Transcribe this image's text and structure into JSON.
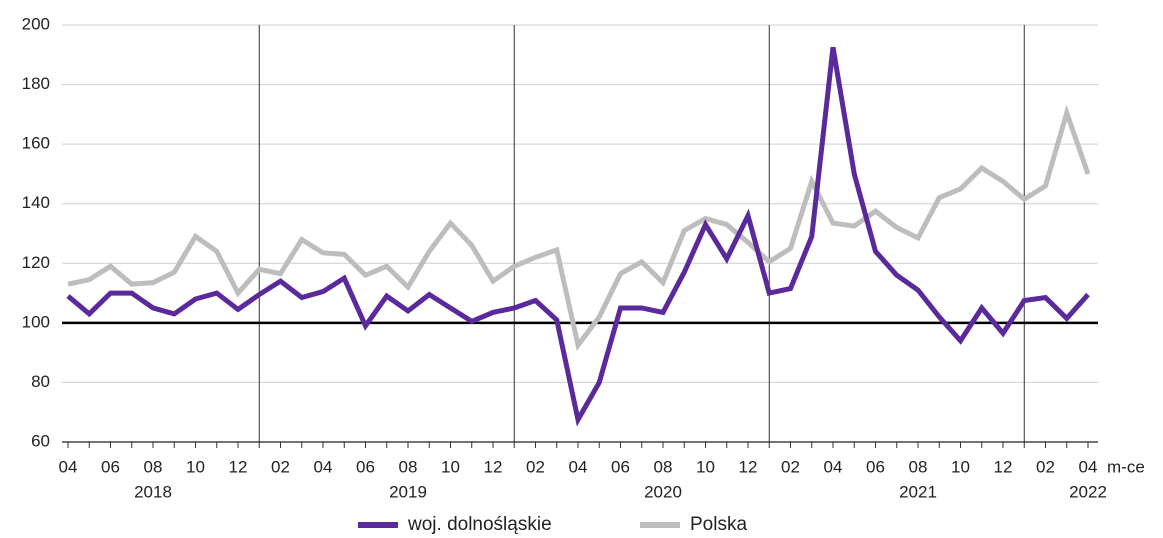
{
  "chart_data": {
    "type": "line",
    "x_label": "m-ce",
    "categories": [
      "04",
      null,
      "06",
      null,
      "08",
      null,
      "10",
      null,
      "12",
      null,
      "02",
      null,
      "04",
      null,
      "06",
      null,
      "08",
      null,
      "10",
      null,
      "12",
      null,
      "02",
      null,
      "04",
      null,
      "06",
      null,
      "08",
      null,
      "10",
      null,
      "12",
      null,
      "02",
      null,
      "04",
      null,
      "06",
      null,
      "08",
      null,
      "10",
      null,
      "12",
      null,
      "02",
      null,
      "04"
    ],
    "year_labels": [
      "2018",
      "2019",
      "2020",
      "2021",
      "2022"
    ],
    "series": [
      {
        "name": "woj. dolnośląskie",
        "color": "#5a2a9c",
        "values": [
          109,
          103,
          110,
          110,
          105,
          103,
          108,
          110,
          104.5,
          109.5,
          114,
          108.5,
          110.5,
          115,
          99,
          109,
          104,
          109.5,
          105,
          100.5,
          103.5,
          105,
          107.5,
          101,
          67.5,
          80,
          105,
          105,
          103.5,
          117,
          133,
          121.5,
          136,
          110,
          111.5,
          129,
          192.5,
          150,
          124,
          116,
          111,
          102,
          94,
          105,
          96.5,
          107.5,
          108.5,
          101.5,
          109.5
        ]
      },
      {
        "name": "Polska",
        "color": "#bdbdbd",
        "values": [
          113,
          114.5,
          119,
          113,
          113.5,
          117,
          129,
          124,
          110,
          118,
          116.5,
          128,
          123.5,
          123,
          116,
          119,
          112,
          124,
          133.5,
          126,
          114,
          119,
          122,
          124.5,
          92.5,
          102,
          116.5,
          120.5,
          113.5,
          131,
          135,
          133,
          127,
          120.5,
          125,
          147.5,
          133.5,
          132.5,
          137.5,
          132,
          128.5,
          142,
          145,
          152,
          147.5,
          141.5,
          146,
          170.5,
          150
        ]
      }
    ],
    "reference_line": 100,
    "ylim": [
      60,
      200
    ],
    "yticks": [
      60,
      80,
      100,
      120,
      140,
      160,
      180,
      200
    ],
    "grid": true
  }
}
